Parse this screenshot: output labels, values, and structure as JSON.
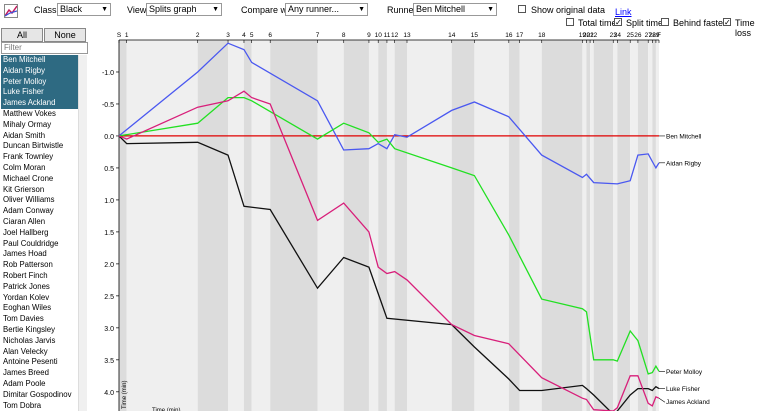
{
  "toolbar": {
    "class_label": "Class:",
    "class_value": "Black",
    "view_label": "View:",
    "view_value": "Splits graph",
    "compare_label": "Compare with",
    "compare_value": "Any runner...",
    "runner_label": "Runner:",
    "runner_value": "Ben Mitchell",
    "show_original_label": "Show original data",
    "link_label": "Link",
    "total_time_label": "Total time",
    "split_time_label": "Split time",
    "behind_fastest_label": "Behind fastest",
    "time_loss_label": "Time loss",
    "checks": {
      "show_original": false,
      "total_time": false,
      "split_time": true,
      "behind_fastest": false,
      "time_loss": true
    }
  },
  "sidebar": {
    "all_label": "All",
    "none_label": "None",
    "filter_placeholder": "Filter",
    "competitors": [
      {
        "name": "Ben Mitchell",
        "selected": true
      },
      {
        "name": "Aidan Rigby",
        "selected": true
      },
      {
        "name": "Peter Molloy",
        "selected": true
      },
      {
        "name": "Luke Fisher",
        "selected": true
      },
      {
        "name": "James Ackland",
        "selected": true
      },
      {
        "name": "Matthew Vokes",
        "selected": false
      },
      {
        "name": "Mihaly Ormay",
        "selected": false
      },
      {
        "name": "Aidan Smith",
        "selected": false
      },
      {
        "name": "Duncan Birtwistle",
        "selected": false
      },
      {
        "name": "Frank Townley",
        "selected": false
      },
      {
        "name": "Colm Moran",
        "selected": false
      },
      {
        "name": "Michael Crone",
        "selected": false
      },
      {
        "name": "Kit Grierson",
        "selected": false
      },
      {
        "name": "Oliver Williams",
        "selected": false
      },
      {
        "name": "Adam Conway",
        "selected": false
      },
      {
        "name": "Ciaran Allen",
        "selected": false
      },
      {
        "name": "Joel Hallberg",
        "selected": false
      },
      {
        "name": "Paul Couldridge",
        "selected": false
      },
      {
        "name": "James Hoad",
        "selected": false
      },
      {
        "name": "Rob Patterson",
        "selected": false
      },
      {
        "name": "Robert Finch",
        "selected": false
      },
      {
        "name": "Patrick Jones",
        "selected": false
      },
      {
        "name": "Yordan Kolev",
        "selected": false
      },
      {
        "name": "Eoghan Wiles",
        "selected": false
      },
      {
        "name": "Tom Davies",
        "selected": false
      },
      {
        "name": "Bertie Kingsley",
        "selected": false
      },
      {
        "name": "Nicholas Jarvis",
        "selected": false
      },
      {
        "name": "Alan Velecky",
        "selected": false
      },
      {
        "name": "Antoine Pesenti",
        "selected": false
      },
      {
        "name": "James Breed",
        "selected": false
      },
      {
        "name": "Adam Poole",
        "selected": false
      },
      {
        "name": "Dimitar Gospodinov",
        "selected": false
      },
      {
        "name": "Tom Dobra",
        "selected": false
      }
    ]
  },
  "chart_data": {
    "type": "line",
    "ylabel": "Time (min)",
    "xlabel": "Time (min)",
    "ylim": [
      -1.5,
      4.3
    ],
    "xlim": [
      0,
      101
    ],
    "y_reversed": true,
    "yticks": [
      "-1.0",
      "-0.5",
      "0.0",
      "0.5",
      "1.0",
      "1.5",
      "2.0",
      "2.5",
      "3.0",
      "3.5",
      "4.0"
    ],
    "ytick_values": [
      -1.0,
      -0.5,
      0.0,
      0.5,
      1.0,
      1.5,
      2.0,
      2.5,
      3.0,
      3.5,
      4.0
    ],
    "controls": [
      {
        "label": "S",
        "x": 0
      },
      {
        "label": "1",
        "x": 1.5
      },
      {
        "label": "2",
        "x": 15.3
      },
      {
        "label": "3",
        "x": 21.2
      },
      {
        "label": "4",
        "x": 24.3
      },
      {
        "label": "5",
        "x": 25.8
      },
      {
        "label": "6",
        "x": 29.4
      },
      {
        "label": "7",
        "x": 38.6
      },
      {
        "label": "8",
        "x": 43.7
      },
      {
        "label": "9",
        "x": 48.6
      },
      {
        "label": "10",
        "x": 50.4
      },
      {
        "label": "11",
        "x": 52.1
      },
      {
        "label": "12",
        "x": 53.6
      },
      {
        "label": "13",
        "x": 56.0
      },
      {
        "label": "14",
        "x": 64.7
      },
      {
        "label": "15",
        "x": 69.1
      },
      {
        "label": "16",
        "x": 75.8
      },
      {
        "label": "17",
        "x": 77.9
      },
      {
        "label": "18",
        "x": 82.2
      },
      {
        "label": "19",
        "x": 90.1
      },
      {
        "label": "20",
        "x": 90.9
      },
      {
        "label": "21",
        "x": 91.6
      },
      {
        "label": "22",
        "x": 92.3
      },
      {
        "label": "23",
        "x": 96.1
      },
      {
        "label": "24",
        "x": 96.9
      },
      {
        "label": "25",
        "x": 99.4
      },
      {
        "label": "26",
        "x": 100.9
      },
      {
        "label": "27",
        "x": 102.9
      },
      {
        "label": "28",
        "x": 103.7
      },
      {
        "label": "29",
        "x": 104.4
      },
      {
        "label": "F",
        "x": 105.0
      }
    ],
    "series": [
      {
        "name": "Ben Mitchell",
        "color": "#e00000",
        "points": [
          [
            0,
            0
          ],
          [
            105,
            0
          ]
        ]
      },
      {
        "name": "Aidan Rigby",
        "color": "#4a58f0",
        "points": [
          [
            0,
            0
          ],
          [
            15.3,
            -1.0
          ],
          [
            21.2,
            -1.45
          ],
          [
            24.3,
            -1.35
          ],
          [
            25.8,
            -1.15
          ],
          [
            38.6,
            -0.55
          ],
          [
            43.7,
            0.22
          ],
          [
            48.6,
            0.2
          ],
          [
            50.4,
            0.12
          ],
          [
            52.1,
            0.2
          ],
          [
            53.6,
            -0.02
          ],
          [
            56.0,
            0.02
          ],
          [
            64.7,
            -0.4
          ],
          [
            69.1,
            -0.53
          ],
          [
            75.8,
            -0.3
          ],
          [
            82.2,
            0.3
          ],
          [
            90.1,
            0.65
          ],
          [
            90.9,
            0.6
          ],
          [
            92.3,
            0.73
          ],
          [
            96.9,
            0.75
          ],
          [
            99.4,
            0.7
          ],
          [
            100.9,
            0.3
          ],
          [
            102.9,
            0.28
          ],
          [
            103.7,
            0.4
          ],
          [
            104.4,
            0.5
          ],
          [
            105.0,
            0.42
          ]
        ]
      },
      {
        "name": "Peter Molloy",
        "color": "#22e022",
        "points": [
          [
            0,
            0
          ],
          [
            15.3,
            -0.2
          ],
          [
            21.2,
            -0.6
          ],
          [
            24.3,
            -0.6
          ],
          [
            25.8,
            -0.55
          ],
          [
            38.6,
            0.05
          ],
          [
            43.7,
            -0.2
          ],
          [
            48.6,
            -0.05
          ],
          [
            50.4,
            0.1
          ],
          [
            52.1,
            0.05
          ],
          [
            53.6,
            0.2
          ],
          [
            64.7,
            0.5
          ],
          [
            69.1,
            0.62
          ],
          [
            75.8,
            1.55
          ],
          [
            82.2,
            2.55
          ],
          [
            90.1,
            2.7
          ],
          [
            90.9,
            2.75
          ],
          [
            92.3,
            3.5
          ],
          [
            96.1,
            3.5
          ],
          [
            96.9,
            3.52
          ],
          [
            99.4,
            3.05
          ],
          [
            100.9,
            3.2
          ],
          [
            102.9,
            3.72
          ],
          [
            103.7,
            3.7
          ],
          [
            104.4,
            3.6
          ],
          [
            105.0,
            3.68
          ]
        ]
      },
      {
        "name": "Luke Fisher",
        "color": "#111111",
        "points": [
          [
            0,
            0
          ],
          [
            1.5,
            0.12
          ],
          [
            15.3,
            0.1
          ],
          [
            21.2,
            0.3
          ],
          [
            24.3,
            1.1
          ],
          [
            29.4,
            1.15
          ],
          [
            38.6,
            2.38
          ],
          [
            43.7,
            1.9
          ],
          [
            48.6,
            2.05
          ],
          [
            52.1,
            2.85
          ],
          [
            64.7,
            2.95
          ],
          [
            69.1,
            3.3
          ],
          [
            75.8,
            3.8
          ],
          [
            77.9,
            3.98
          ],
          [
            82.2,
            3.98
          ],
          [
            90.1,
            3.9
          ],
          [
            90.9,
            3.95
          ],
          [
            92.3,
            4.05
          ],
          [
            96.1,
            4.35
          ],
          [
            96.9,
            4.3
          ],
          [
            99.4,
            4.05
          ],
          [
            100.9,
            3.95
          ],
          [
            102.9,
            3.95
          ],
          [
            103.7,
            3.98
          ],
          [
            104.4,
            3.92
          ],
          [
            105.0,
            3.95
          ]
        ]
      },
      {
        "name": "James Ackland",
        "color": "#d81f7a",
        "points": [
          [
            0,
            0
          ],
          [
            1.5,
            0.05
          ],
          [
            15.3,
            -0.45
          ],
          [
            21.2,
            -0.55
          ],
          [
            24.3,
            -0.7
          ],
          [
            25.8,
            -0.6
          ],
          [
            29.4,
            -0.5
          ],
          [
            38.6,
            1.32
          ],
          [
            43.7,
            1.05
          ],
          [
            48.6,
            1.5
          ],
          [
            50.4,
            2.05
          ],
          [
            52.1,
            2.15
          ],
          [
            53.6,
            2.12
          ],
          [
            56.0,
            2.25
          ],
          [
            64.7,
            2.95
          ],
          [
            69.1,
            3.12
          ],
          [
            75.8,
            3.25
          ],
          [
            82.2,
            3.78
          ],
          [
            90.1,
            4.1
          ],
          [
            90.9,
            4.12
          ],
          [
            92.3,
            4.28
          ],
          [
            96.1,
            4.3
          ],
          [
            96.9,
            4.25
          ],
          [
            99.4,
            3.75
          ],
          [
            100.9,
            3.75
          ],
          [
            102.9,
            4.18
          ],
          [
            103.7,
            4.22
          ],
          [
            104.4,
            4.08
          ],
          [
            105.0,
            4.1
          ]
        ]
      }
    ]
  }
}
